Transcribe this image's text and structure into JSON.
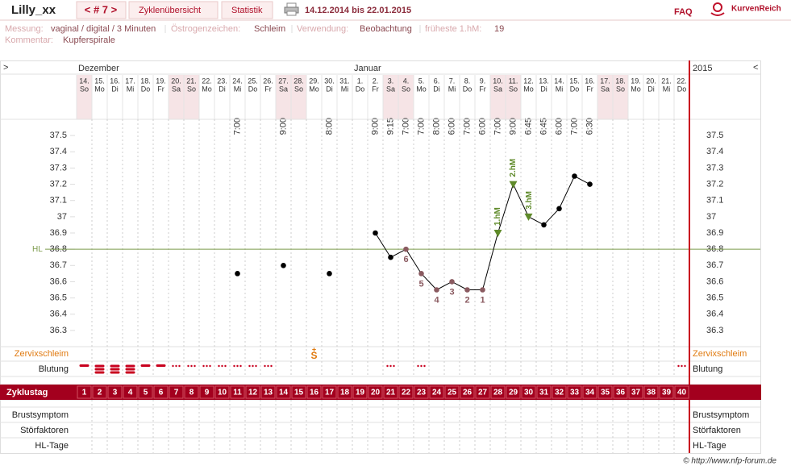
{
  "header": {
    "user": "Lilly_xx",
    "cycle_nav": "< # 7 >",
    "tabs": [
      "Zyklenübersicht",
      "Statistik"
    ],
    "period": "14.12.2014 bis 22.01.2015",
    "faq": "FAQ",
    "brand": "KurvenReich"
  },
  "info": {
    "fields": [
      {
        "label": "Messung:",
        "value": "vaginal / digital / 3 Minuten"
      },
      {
        "label": "Östrogenzeichen:",
        "value": "Schleim"
      },
      {
        "label": "Verwendung:",
        "value": "Beobachtung"
      },
      {
        "label": "früheste 1.hM:",
        "value": "19"
      }
    ],
    "comment": {
      "label": "Kommentar:",
      "value": "Kupferspirale"
    }
  },
  "chart_data": {
    "type": "line",
    "nav_left": ">",
    "nav_right": "<",
    "year": "2015",
    "months": [
      {
        "label": "Dezember",
        "day": 1
      },
      {
        "label": "Januar",
        "day": 19
      }
    ],
    "dates": [
      "14.",
      "15.",
      "16.",
      "17.",
      "18.",
      "19.",
      "20.",
      "21.",
      "22.",
      "23.",
      "24.",
      "25.",
      "26.",
      "27.",
      "28.",
      "29.",
      "30.",
      "31.",
      "1.",
      "2.",
      "3.",
      "4.",
      "5.",
      "6.",
      "7.",
      "8.",
      "9.",
      "10.",
      "11.",
      "12.",
      "13.",
      "14.",
      "15.",
      "16.",
      "17.",
      "18.",
      "19.",
      "20.",
      "21.",
      "22."
    ],
    "weekdays": [
      "So",
      "Mo",
      "Di",
      "Mi",
      "Do",
      "Fr",
      "Sa",
      "So",
      "Mo",
      "Di",
      "Mi",
      "Do",
      "Fr",
      "Sa",
      "So",
      "Mo",
      "Di",
      "Mi",
      "Do",
      "Fr",
      "Sa",
      "So",
      "Mo",
      "Di",
      "Mi",
      "Do",
      "Fr",
      "Sa",
      "So",
      "Mo",
      "Di",
      "Mi",
      "Do",
      "Fr",
      "Sa",
      "So",
      "Mo",
      "Di",
      "Mi",
      "Do"
    ],
    "times": [
      null,
      null,
      null,
      null,
      null,
      null,
      null,
      null,
      null,
      null,
      "7:00",
      null,
      null,
      "9:00",
      null,
      null,
      "8:00",
      null,
      null,
      "9:00",
      "9:15",
      "7:00",
      "7:00",
      "8:00",
      "6:00",
      "7:00",
      "6:00",
      "7:00",
      "9:00",
      "6:45",
      "6:45",
      "6:00",
      "7:00",
      "6:30",
      null,
      null,
      null,
      null,
      null,
      null
    ],
    "categories": [
      1,
      2,
      3,
      4,
      5,
      6,
      7,
      8,
      9,
      10,
      11,
      12,
      13,
      14,
      15,
      16,
      17,
      18,
      19,
      20,
      21,
      22,
      23,
      24,
      25,
      26,
      27,
      28,
      29,
      30,
      31,
      32,
      33,
      34,
      35,
      36,
      37,
      38,
      39,
      40
    ],
    "x_label": "Zyklustag",
    "series": [
      {
        "name": "Temperatur",
        "color": "#000000",
        "values": [
          null,
          null,
          null,
          null,
          null,
          null,
          null,
          null,
          null,
          null,
          36.65,
          null,
          null,
          36.7,
          null,
          null,
          36.65,
          null,
          null,
          36.9,
          36.75,
          36.8,
          36.65,
          36.55,
          36.6,
          36.55,
          36.55,
          36.9,
          37.2,
          37.0,
          36.95,
          37.05,
          37.25,
          37.2,
          null,
          null,
          null,
          null,
          null,
          null
        ]
      }
    ],
    "ylim": [
      36.2,
      37.6
    ],
    "yticks": [
      36.3,
      36.4,
      36.5,
      36.6,
      36.7,
      36.8,
      36.9,
      37,
      37.1,
      37.2,
      37.3,
      37.4,
      37.5
    ],
    "coverline": {
      "label": "HL",
      "value": 36.8,
      "color": "#7a9a4a"
    },
    "low_labels": [
      {
        "day": 22,
        "label": "6"
      },
      {
        "day": 23,
        "label": "5"
      },
      {
        "day": 24,
        "label": "4"
      },
      {
        "day": 25,
        "label": "3"
      },
      {
        "day": 26,
        "label": "2"
      },
      {
        "day": 27,
        "label": "1"
      }
    ],
    "low_color": "#8a5a60",
    "high_labels": [
      {
        "day": 28,
        "label": "1.hM"
      },
      {
        "day": 29,
        "label": "2.hM"
      },
      {
        "day": 30,
        "label": "3.hM"
      }
    ],
    "high_color": "#5f8a2a",
    "rows": {
      "cervix": "Zervixschleim",
      "bleeding": "Blutung",
      "breast": "Brustsymptom",
      "disturb": "Störfaktoren",
      "hl_days": "HL-Tage"
    },
    "cervix_marks": [
      {
        "day": 16,
        "label": "S",
        "sup": "+"
      }
    ],
    "bleeding": [
      2,
      3,
      3,
      3,
      2,
      2,
      1,
      1,
      1,
      1,
      1,
      1,
      1,
      null,
      null,
      null,
      null,
      null,
      null,
      null,
      1,
      null,
      1,
      null,
      null,
      null,
      null,
      null,
      null,
      null,
      null,
      null,
      null,
      null,
      null,
      null,
      null,
      null,
      null,
      1
    ],
    "footer": "© http://www.nfp-forum.de"
  }
}
